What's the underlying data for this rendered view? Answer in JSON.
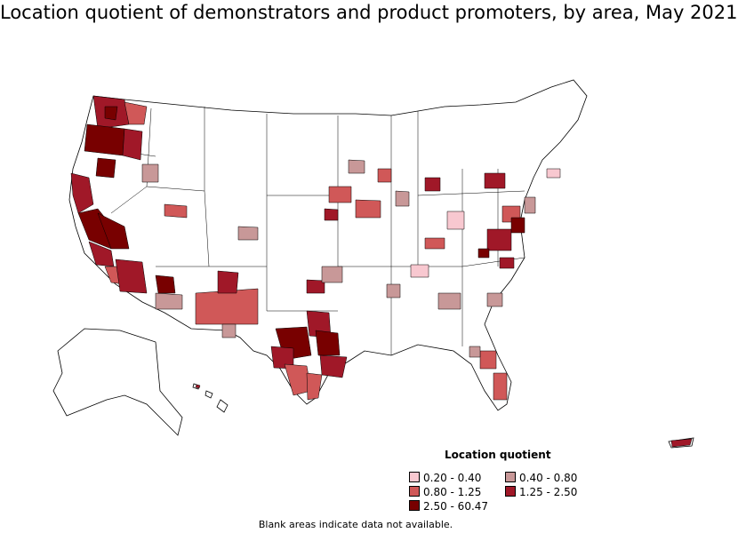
{
  "title": "Location quotient of demonstrators and product promoters, by area, May 2021",
  "legend": {
    "title": "Location quotient",
    "items": [
      {
        "label": "0.20 - 0.40",
        "color": "#f8c8d0"
      },
      {
        "label": "0.40 - 0.80",
        "color": "#c89898"
      },
      {
        "label": "0.80 - 1.25",
        "color": "#d05858"
      },
      {
        "label": "1.25 - 2.50",
        "color": "#a01828"
      },
      {
        "label": "2.50 - 60.47",
        "color": "#780000"
      }
    ]
  },
  "footnote": "Blank areas indicate data not available.",
  "colors": {
    "outline": "#000000",
    "nodata": "#ffffff"
  }
}
